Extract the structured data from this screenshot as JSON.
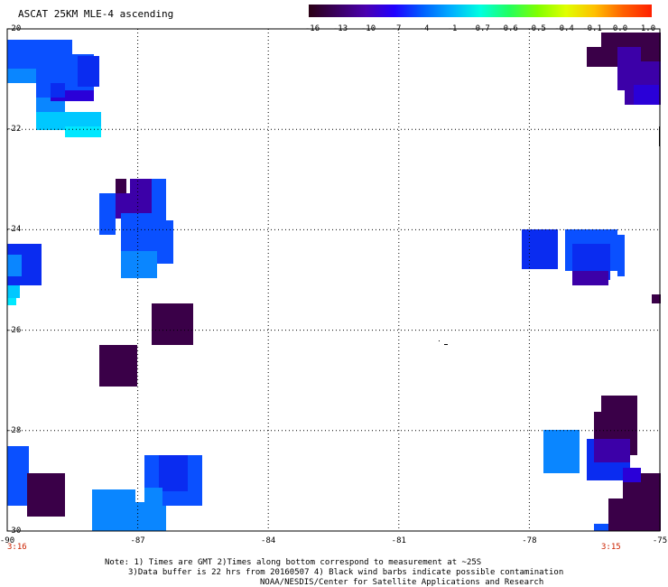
{
  "title": "ASCAT 25KM MLE-4 ascending",
  "colorbar": {
    "labels": [
      "-16",
      "-13",
      "-10",
      "-7",
      "-4",
      "-1",
      "-0.7",
      "-0.6",
      "-0.5",
      "-0.4",
      "-0.1",
      "0.0",
      "1.0"
    ],
    "colors": [
      "#2a0014",
      "#3a0060",
      "#4a00b0",
      "#2000ff",
      "#0060ff",
      "#00b0ff",
      "#00ffe0",
      "#20ff60",
      "#80ff00",
      "#e0ff00",
      "#ffc000",
      "#ff6000",
      "#ff2000"
    ]
  },
  "axes": {
    "lat_labels": [
      "-20",
      "-22",
      "-24",
      "-26",
      "-28",
      "-30"
    ],
    "lat_values": [
      -20,
      -22,
      -24,
      -26,
      -28,
      -30
    ],
    "lon_labels": [
      "-90",
      "-87",
      "-84",
      "-81",
      "-78",
      "-75"
    ],
    "lon_values": [
      -90,
      -87,
      -84,
      -81,
      -78,
      -75
    ]
  },
  "times": {
    "left": "3:16",
    "right": "3:15"
  },
  "notes": {
    "line1": "Note: 1) Times are GMT 2)Times along bottom correspond to measurement at ~25S",
    "line2": "3)Data buffer is 22 hrs from 20160507 4) Black wind barbs indicate possible contamination",
    "line3": "NOAA/NESDIS/Center for Satellite Applications and Research"
  },
  "swath_colors": {
    "deep": "#3a0048",
    "purple": "#3c00a8",
    "violet": "#2a00d8",
    "blue": "#0a2cf0",
    "mid": "#0a50ff",
    "light": "#0a86ff",
    "cyan": "#00c8ff",
    "teal": "#00e8ff"
  }
}
